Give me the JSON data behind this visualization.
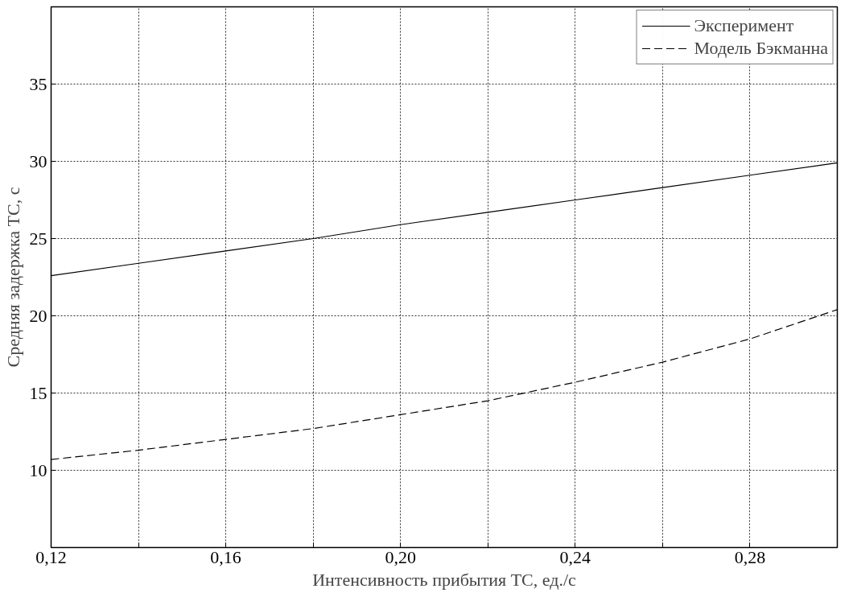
{
  "chart_data": {
    "type": "line",
    "xlabel": "Интенсивность прибытия ТС, ед./с",
    "ylabel": "Средняя задержка ТС, с",
    "x": [
      0.12,
      0.14,
      0.16,
      0.18,
      0.2,
      0.22,
      0.24,
      0.26,
      0.28,
      0.3
    ],
    "series": [
      {
        "name": "Эксперимент",
        "color": "#000000",
        "line_style": "solid",
        "values": [
          22.6,
          23.4,
          24.2,
          25.0,
          25.9,
          26.7,
          27.5,
          28.3,
          29.1,
          29.9
        ]
      },
      {
        "name": "Модель Бэкманна",
        "color": "#000000",
        "line_style": "dashed",
        "values": [
          10.7,
          11.3,
          12.0,
          12.7,
          13.6,
          14.5,
          15.7,
          17.0,
          18.5,
          20.4
        ]
      }
    ],
    "xlim": [
      0.12,
      0.3
    ],
    "ylim": [
      5,
      40
    ],
    "xticks": [
      {
        "value": 0.12,
        "label": "0,12"
      },
      {
        "value": 0.14,
        "label": null
      },
      {
        "value": 0.16,
        "label": "0,16"
      },
      {
        "value": 0.18,
        "label": null
      },
      {
        "value": 0.2,
        "label": "0,20"
      },
      {
        "value": 0.22,
        "label": null
      },
      {
        "value": 0.24,
        "label": "0,24"
      },
      {
        "value": 0.26,
        "label": null
      },
      {
        "value": 0.28,
        "label": "0,28"
      }
    ],
    "yticks": [
      10,
      15,
      20,
      25,
      30,
      35
    ],
    "grid": true,
    "legend": "top right"
  }
}
